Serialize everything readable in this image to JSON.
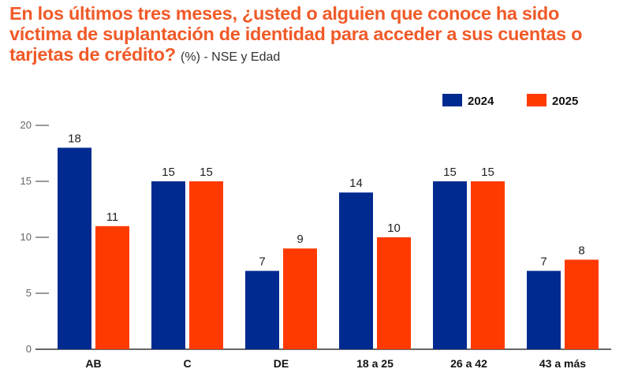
{
  "chart_data": {
    "type": "bar",
    "title": "En los últimos tres meses, ¿usted o alguien que conoce ha sido víctima de suplantación de identidad para acceder a sus cuentas o tarjetas de crédito?",
    "subtitle": "(%) - NSE y Edad",
    "categories": [
      "AB",
      "C",
      "DE",
      "18 a 25",
      "26 a 42",
      "43 a más"
    ],
    "series": [
      {
        "name": "2024",
        "color": "#002a8f",
        "values": [
          18,
          15,
          7,
          14,
          15,
          7
        ]
      },
      {
        "name": "2025",
        "color": "#ff3a00",
        "values": [
          11,
          15,
          9,
          10,
          15,
          8
        ]
      }
    ],
    "ylim": [
      0,
      20
    ],
    "yticks": [
      0,
      5,
      10,
      15,
      20
    ],
    "grid": false,
    "legend": "top-right",
    "xlabel": "",
    "ylabel": ""
  }
}
